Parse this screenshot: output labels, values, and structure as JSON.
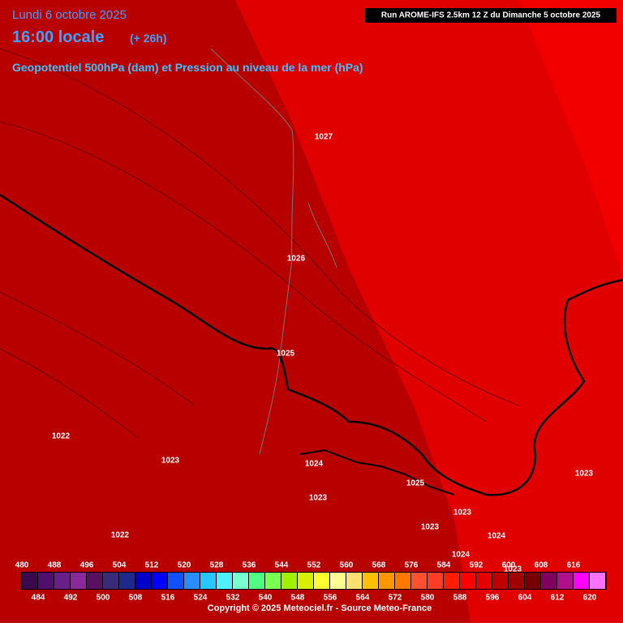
{
  "header": {
    "date": "Lundi 6 octobre 2025",
    "time": "16:00 locale",
    "lead": "(+ 26h)",
    "field": "Geopotentiel 500hPa (dam) et Pression au niveau de la mer (hPa)",
    "run": "Run AROME-IFS 2.5km 12 Z du Dimanche 5 octobre 2025"
  },
  "isobar_labels": [
    "1027",
    "1026",
    "1025",
    "1022",
    "1023",
    "1024",
    "1023",
    "1025",
    "1023",
    "1023",
    "1024",
    "1022",
    "1024",
    "1023",
    "1023"
  ],
  "legend": {
    "colors": [
      "#3a0a4a",
      "#4f0f6a",
      "#6a1e8a",
      "#8a2a9a",
      "#5a1060",
      "#3a2a7a",
      "#1e2a8a",
      "#0000c8",
      "#0000ff",
      "#1050ff",
      "#2a8cff",
      "#28c8ff",
      "#50f0ff",
      "#78ffd0",
      "#50ff80",
      "#78ff50",
      "#a0f000",
      "#d8f000",
      "#ffff30",
      "#ffff90",
      "#ffe070",
      "#ffc000",
      "#ff9600",
      "#ff7800",
      "#ff5030",
      "#ff3c28",
      "#ff1e00",
      "#ff0000",
      "#e00000",
      "#c00000",
      "#a00000",
      "#780000",
      "#800060",
      "#b0108a",
      "#ff00ff",
      "#ff70ff"
    ],
    "top_labels": [
      "480",
      "488",
      "496",
      "504",
      "512",
      "520",
      "528",
      "536",
      "544",
      "552",
      "560",
      "568",
      "576",
      "584",
      "592",
      "600",
      "608",
      "616"
    ],
    "bottom_labels": [
      "484",
      "492",
      "500",
      "508",
      "516",
      "524",
      "532",
      "540",
      "548",
      "556",
      "564",
      "572",
      "580",
      "588",
      "596",
      "604",
      "612",
      "620"
    ]
  },
  "footer": {
    "copyright": "Copyright © 2025 Meteociel.fr - Source Meteo-France"
  }
}
